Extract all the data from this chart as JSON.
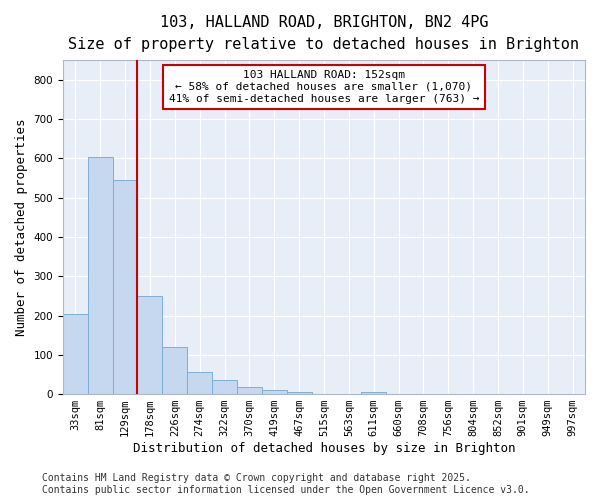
{
  "title1": "103, HALLAND ROAD, BRIGHTON, BN2 4PG",
  "title2": "Size of property relative to detached houses in Brighton",
  "xlabel": "Distribution of detached houses by size in Brighton",
  "ylabel": "Number of detached properties",
  "bar_color": "#c5d8f0",
  "bar_edge_color": "#7bafd4",
  "background_color": "#e8eef8",
  "grid_color": "#ffffff",
  "red_line_color": "#cc0000",
  "annotation_title": "103 HALLAND ROAD: 152sqm",
  "annotation_line1": "← 58% of detached houses are smaller (1,070)",
  "annotation_line2": "41% of semi-detached houses are larger (763) →",
  "annotation_box_color": "#ffffff",
  "annotation_box_edge": "#cc0000",
  "categories": [
    "33sqm",
    "81sqm",
    "129sqm",
    "178sqm",
    "226sqm",
    "274sqm",
    "322sqm",
    "370sqm",
    "419sqm",
    "467sqm",
    "515sqm",
    "563sqm",
    "611sqm",
    "660sqm",
    "708sqm",
    "756sqm",
    "804sqm",
    "852sqm",
    "901sqm",
    "949sqm",
    "997sqm"
  ],
  "values": [
    203,
    605,
    545,
    250,
    120,
    55,
    35,
    18,
    10,
    5,
    1,
    0,
    5,
    0,
    0,
    0,
    0,
    0,
    0,
    0,
    0
  ],
  "ylim": [
    0,
    850
  ],
  "yticks": [
    0,
    100,
    200,
    300,
    400,
    500,
    600,
    700,
    800
  ],
  "red_line_bin_index": 2,
  "footer1": "Contains HM Land Registry data © Crown copyright and database right 2025.",
  "footer2": "Contains public sector information licensed under the Open Government Licence v3.0.",
  "title_fontsize": 11,
  "subtitle_fontsize": 10,
  "tick_fontsize": 7.5,
  "label_fontsize": 9,
  "annotation_fontsize": 8,
  "footer_fontsize": 7
}
